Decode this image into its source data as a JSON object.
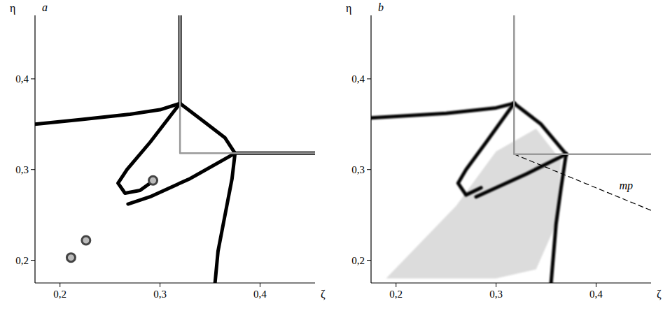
{
  "chart_data": [
    {
      "type": "line",
      "title": "a",
      "xlabel": "ζ",
      "ylabel": "η",
      "xlim": [
        0.175,
        0.455
      ],
      "ylim": [
        0.175,
        0.47
      ],
      "xticks": [
        {
          "value": 0.2,
          "label": "0,2"
        },
        {
          "value": 0.3,
          "label": "0,3"
        },
        {
          "value": 0.4,
          "label": "0,4"
        }
      ],
      "yticks": [
        {
          "value": 0.2,
          "label": "0,2"
        },
        {
          "value": 0.3,
          "label": "0,3"
        },
        {
          "value": 0.4,
          "label": "0,4"
        }
      ],
      "curves": [
        {
          "color": "#000000",
          "x": [
            0.175,
            0.22,
            0.27,
            0.3,
            0.32
          ],
          "y": [
            0.35,
            0.355,
            0.361,
            0.366,
            0.373
          ]
        },
        {
          "color": "#000000",
          "x": [
            0.32,
            0.32
          ],
          "y": [
            0.373,
            0.47
          ]
        },
        {
          "color": "#000000",
          "x": [
            0.32,
            0.345,
            0.365,
            0.375
          ],
          "y": [
            0.373,
            0.352,
            0.335,
            0.318
          ]
        },
        {
          "color": "#000000",
          "x": [
            0.375,
            0.372,
            0.365,
            0.358,
            0.355
          ],
          "y": [
            0.318,
            0.29,
            0.25,
            0.21,
            0.175
          ]
        },
        {
          "color": "#000000",
          "x": [
            0.375,
            0.455
          ],
          "y": [
            0.318,
            0.318
          ]
        },
        {
          "color": "#000000",
          "x": [
            0.32,
            0.29,
            0.267,
            0.258,
            0.265,
            0.28,
            0.29
          ],
          "y": [
            0.373,
            0.33,
            0.3,
            0.285,
            0.274,
            0.277,
            0.285
          ]
        },
        {
          "color": "#000000",
          "x": [
            0.375,
            0.33,
            0.29,
            0.268
          ],
          "y": [
            0.318,
            0.29,
            0.27,
            0.262
          ]
        },
        {
          "color": "#999999",
          "x": [
            0.32,
            0.32,
            0.32,
            0.455
          ],
          "y": [
            0.47,
            0.373,
            0.318,
            0.318
          ]
        }
      ],
      "vortices": {
        "x": [
          0.293,
          0.226,
          0.211
        ],
        "y": [
          0.288,
          0.222,
          0.203
        ]
      }
    },
    {
      "type": "line",
      "title": "b",
      "xlabel": "ζ",
      "ylabel": "η",
      "xlim": [
        0.175,
        0.455
      ],
      "ylim": [
        0.175,
        0.47
      ],
      "xticks": [
        {
          "value": 0.2,
          "label": "0,2"
        },
        {
          "value": 0.3,
          "label": "0,3"
        },
        {
          "value": 0.4,
          "label": "0,4"
        }
      ],
      "yticks": [
        {
          "value": 0.2,
          "label": "0,2"
        },
        {
          "value": 0.3,
          "label": "0,3"
        },
        {
          "value": 0.4,
          "label": "0,4"
        }
      ],
      "shaded": {
        "x": [
          0.19,
          0.26,
          0.3,
          0.34,
          0.365,
          0.36,
          0.34,
          0.3
        ],
        "y": [
          0.18,
          0.26,
          0.32,
          0.345,
          0.31,
          0.24,
          0.19,
          0.18
        ]
      },
      "curves": [
        {
          "color": "#000000",
          "x": [
            0.175,
            0.25,
            0.3,
            0.318
          ],
          "y": [
            0.357,
            0.362,
            0.368,
            0.373
          ]
        },
        {
          "color": "#000000",
          "x": [
            0.318,
            0.318
          ],
          "y": [
            0.373,
            0.47
          ]
        },
        {
          "color": "#000000",
          "x": [
            0.318,
            0.345,
            0.37
          ],
          "y": [
            0.373,
            0.35,
            0.317
          ]
        },
        {
          "color": "#000000",
          "x": [
            0.37,
            0.365,
            0.36,
            0.355
          ],
          "y": [
            0.317,
            0.28,
            0.24,
            0.175
          ]
        },
        {
          "color": "#000000",
          "x": [
            0.37,
            0.455
          ],
          "y": [
            0.317,
            0.317
          ]
        },
        {
          "color": "#000000",
          "x": [
            0.318,
            0.29,
            0.27,
            0.262,
            0.27,
            0.285
          ],
          "y": [
            0.373,
            0.33,
            0.3,
            0.285,
            0.272,
            0.28
          ]
        },
        {
          "color": "#000000",
          "x": [
            0.37,
            0.33,
            0.3,
            0.28
          ],
          "y": [
            0.317,
            0.295,
            0.28,
            0.27
          ]
        },
        {
          "color": "#999999",
          "x": [
            0.318,
            0.318,
            0.455
          ],
          "y": [
            0.47,
            0.317,
            0.317
          ]
        },
        {
          "color": "#000000",
          "line_style": "dashed",
          "x": [
            0.318,
            0.455
          ],
          "y": [
            0.317,
            0.255
          ]
        }
      ],
      "annotations": [
        {
          "text": "mp",
          "x": 0.43,
          "y": 0.278
        }
      ]
    }
  ]
}
